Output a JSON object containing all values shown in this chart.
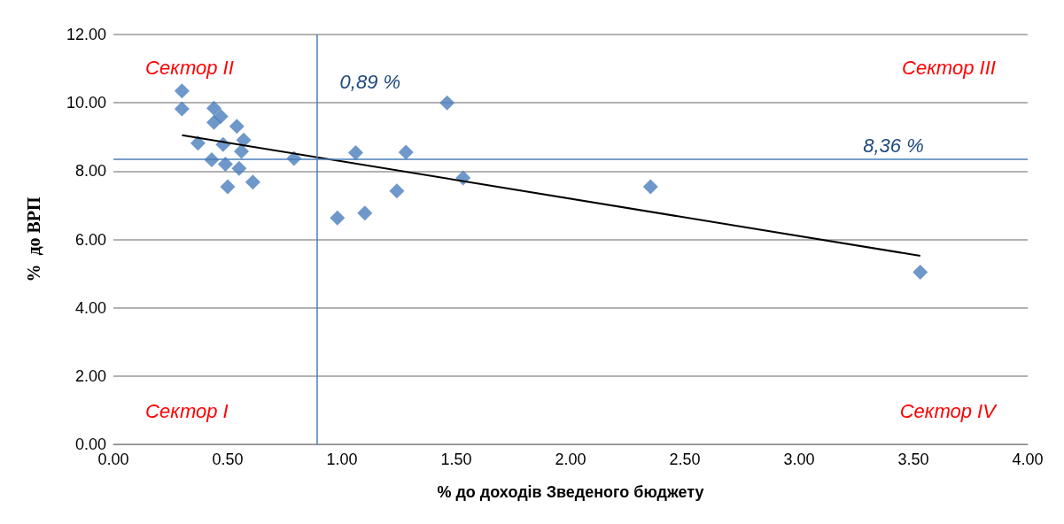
{
  "chart_data": {
    "type": "scatter",
    "xlabel": "% до доходів Зведеного бюджету",
    "ylabel": "%  до ВРП",
    "annotations": [
      "Сектор II",
      "Сектор III",
      "Сектор I",
      "Сектор IV"
    ],
    "series": [
      {
        "color": "#4a7ebb",
        "marker": "diamond",
        "x": [
          0.3,
          0.3,
          0.44,
          0.47,
          0.44,
          0.54,
          0.57,
          0.37,
          0.48,
          0.56,
          0.79,
          0.43,
          0.49,
          0.55,
          0.5,
          0.61,
          1.46,
          1.06,
          1.28,
          1.53,
          1.24,
          0.98,
          1.1,
          2.35,
          3.53
        ],
        "values": [
          10.35,
          9.82,
          9.84,
          9.6,
          9.43,
          9.31,
          8.91,
          8.82,
          8.78,
          8.58,
          8.37,
          8.33,
          8.2,
          8.08,
          7.54,
          7.68,
          10.0,
          8.54,
          8.55,
          7.8,
          7.42,
          6.63,
          6.77,
          7.54,
          5.04
        ]
      },
      {
        "type": "line",
        "color": "#000000",
        "marker": "none",
        "x": [
          0.3,
          3.53
        ],
        "values": [
          9.05,
          5.52
        ]
      }
    ],
    "xlim": [
      0,
      4
    ],
    "ylim": [
      0,
      12
    ],
    "xticks": [
      {
        "value": 0,
        "label": "0.00"
      },
      {
        "value": 0.5,
        "label": "0.50"
      },
      {
        "value": 1,
        "label": "1.00"
      },
      {
        "value": 1.5,
        "label": "1.50"
      },
      {
        "value": 2,
        "label": "2.00"
      },
      {
        "value": 2.5,
        "label": "2.50"
      },
      {
        "value": 3,
        "label": "3.00"
      },
      {
        "value": 3.5,
        "label": "3.50"
      },
      {
        "value": 4,
        "label": "4.00"
      }
    ],
    "yticks": [
      {
        "value": 0,
        "label": "0.00"
      },
      {
        "value": 2,
        "label": "2.00"
      },
      {
        "value": 4,
        "label": "4.00"
      },
      {
        "value": 6,
        "label": "6.00"
      },
      {
        "value": 8,
        "label": "8.00"
      },
      {
        "value": 10,
        "label": "10.00"
      },
      {
        "value": 12,
        "label": "12.00"
      }
    ],
    "ref_lines": [
      {
        "axis": "x",
        "value": 0.89,
        "label": "0,89 %",
        "color": "#4a7ebb"
      },
      {
        "axis": "y",
        "value": 8.36,
        "label": "8,36 %",
        "color": "#4a7ebb"
      }
    ],
    "grid": "y"
  }
}
